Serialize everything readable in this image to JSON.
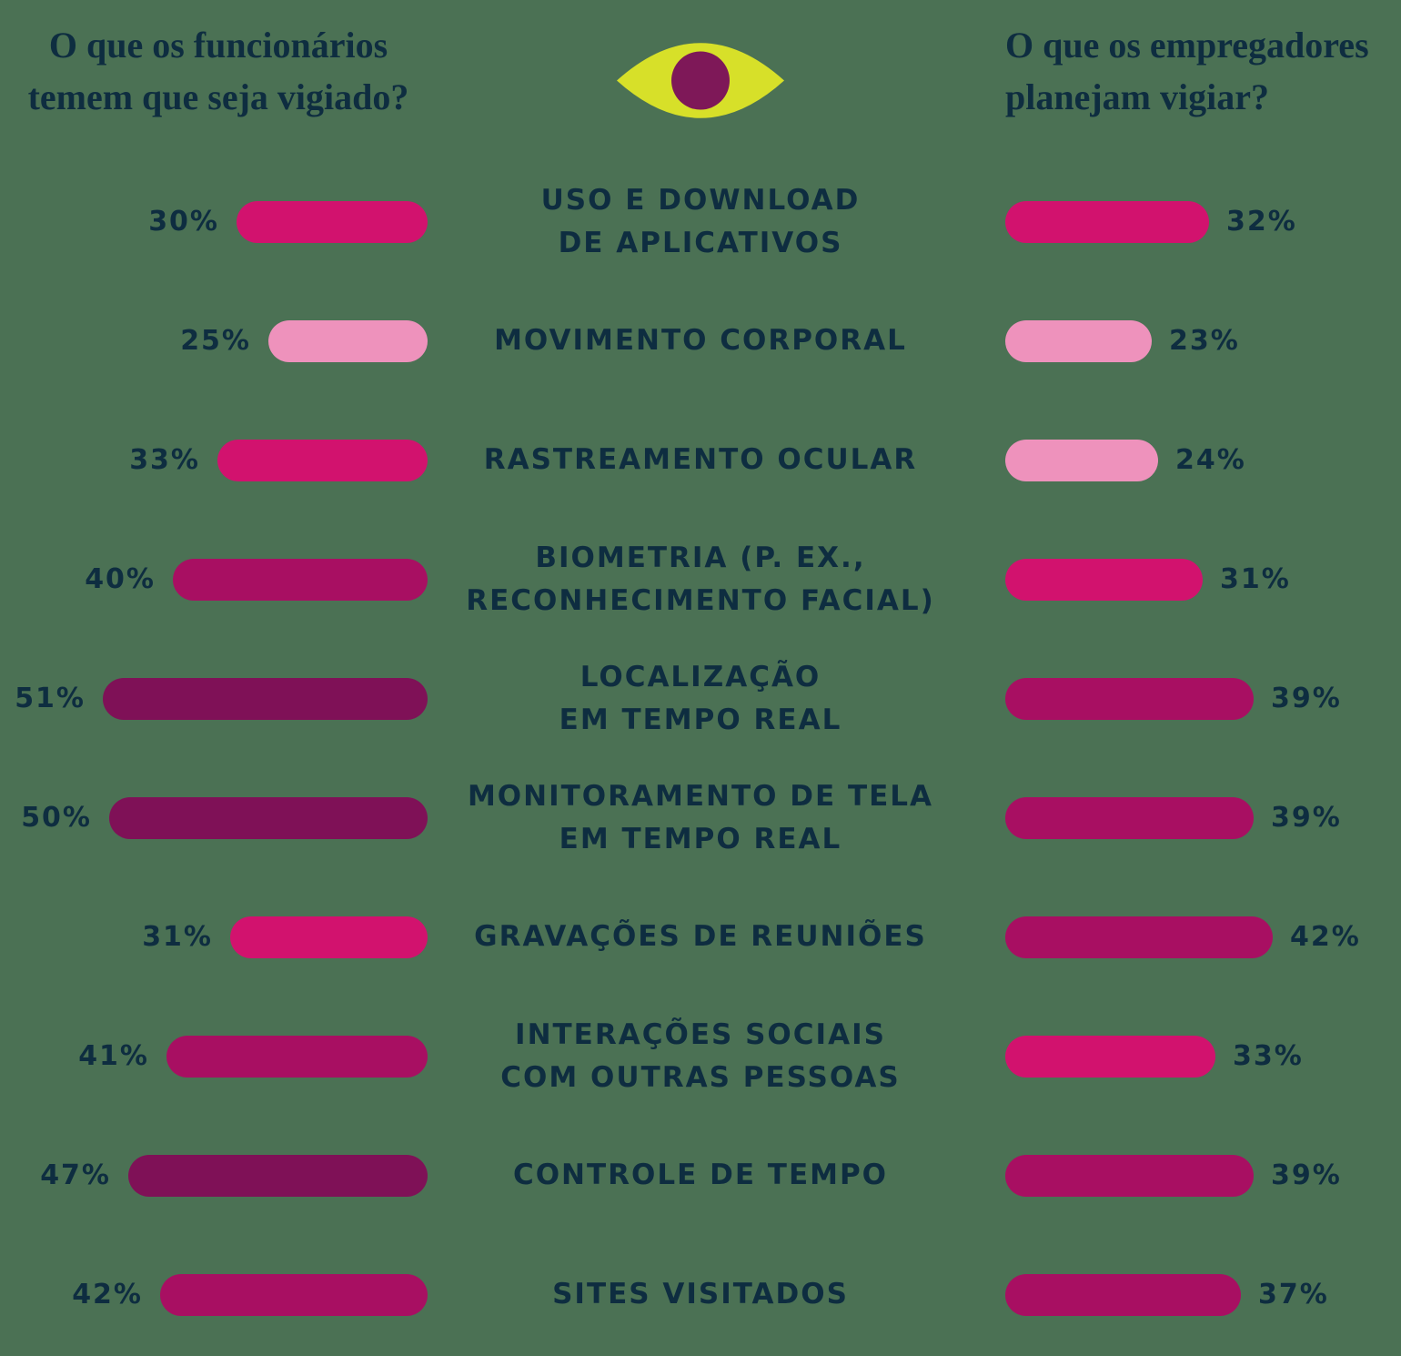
{
  "page": {
    "background": "#4b7154",
    "text_color": "#0e2d40"
  },
  "header": {
    "left_title": "O que os funcionários\ntemem que seja vigiado?",
    "right_title": "O que os empregadores\nplanejam vigiar?",
    "eye_icon": {
      "name": "eye-icon",
      "iris_color": "#d7e029",
      "pupil_color": "#7e1858"
    }
  },
  "chart_data": {
    "type": "bar",
    "orientation": "horizontal-diverging",
    "unit": "%",
    "value_range": [
      0,
      51
    ],
    "left_series_name": "O que os funcionários temem que seja vigiado?",
    "right_series_name": "O que os empregadores planejam vigiar?",
    "palette": {
      "light_pink": "#ee92bc",
      "bright_magenta": "#d2126e",
      "medium_mulberry": "#a80f62",
      "dark_plum": "#7f1157"
    },
    "categories": [
      "USO E DOWNLOAD DE APLICATIVOS",
      "MOVIMENTO CORPORAL",
      "RASTREAMENTO OCULAR",
      "BIOMETRIA (P. EX., RECONHECIMENTO FACIAL)",
      "LOCALIZAÇÃO EM TEMPO REAL",
      "MONITORAMENTO DE TELA EM TEMPO REAL",
      "GRAVAÇÕES DE REUNIÕES",
      "INTERAÇÕES SOCIAIS COM OUTRAS PESSOAS",
      "CONTROLE DE TEMPO",
      "SITES VISITADOS"
    ],
    "rows": [
      {
        "label": "USO E DOWNLOAD\nDE APLICATIVOS",
        "left": {
          "value": 30,
          "display": "30%",
          "color": "#d2126e"
        },
        "right": {
          "value": 32,
          "display": "32%",
          "color": "#d2126e"
        }
      },
      {
        "label": "MOVIMENTO CORPORAL",
        "left": {
          "value": 25,
          "display": "25%",
          "color": "#ee92bc"
        },
        "right": {
          "value": 23,
          "display": "23%",
          "color": "#ee92bc"
        }
      },
      {
        "label": "RASTREAMENTO OCULAR",
        "left": {
          "value": 33,
          "display": "33%",
          "color": "#d2126e"
        },
        "right": {
          "value": 24,
          "display": "24%",
          "color": "#ee92bc"
        }
      },
      {
        "label": "BIOMETRIA (P. EX.,\nRECONHECIMENTO FACIAL)",
        "left": {
          "value": 40,
          "display": "40%",
          "color": "#a80f62"
        },
        "right": {
          "value": 31,
          "display": "31%",
          "color": "#d2126e"
        }
      },
      {
        "label": "LOCALIZAÇÃO\nEM TEMPO REAL",
        "left": {
          "value": 51,
          "display": "51%",
          "color": "#7f1157"
        },
        "right": {
          "value": 39,
          "display": "39%",
          "color": "#a80f62"
        }
      },
      {
        "label": "MONITORAMENTO DE TELA\nEM TEMPO REAL",
        "left": {
          "value": 50,
          "display": "50%",
          "color": "#7f1157"
        },
        "right": {
          "value": 39,
          "display": "39%",
          "color": "#a80f62"
        }
      },
      {
        "label": "GRAVAÇÕES DE REUNIÕES",
        "left": {
          "value": 31,
          "display": "31%",
          "color": "#d2126e"
        },
        "right": {
          "value": 42,
          "display": "42%",
          "color": "#a80f62"
        }
      },
      {
        "label": "INTERAÇÕES SOCIAIS\nCOM OUTRAS PESSOAS",
        "left": {
          "value": 41,
          "display": "41%",
          "color": "#a80f62"
        },
        "right": {
          "value": 33,
          "display": "33%",
          "color": "#d2126e"
        }
      },
      {
        "label": "CONTROLE DE TEMPO",
        "left": {
          "value": 47,
          "display": "47%",
          "color": "#7f1157"
        },
        "right": {
          "value": 39,
          "display": "39%",
          "color": "#a80f62"
        }
      },
      {
        "label": "SITES VISITADOS",
        "left": {
          "value": 42,
          "display": "42%",
          "color": "#a80f62"
        },
        "right": {
          "value": 37,
          "display": "37%",
          "color": "#a80f62"
        }
      }
    ]
  }
}
